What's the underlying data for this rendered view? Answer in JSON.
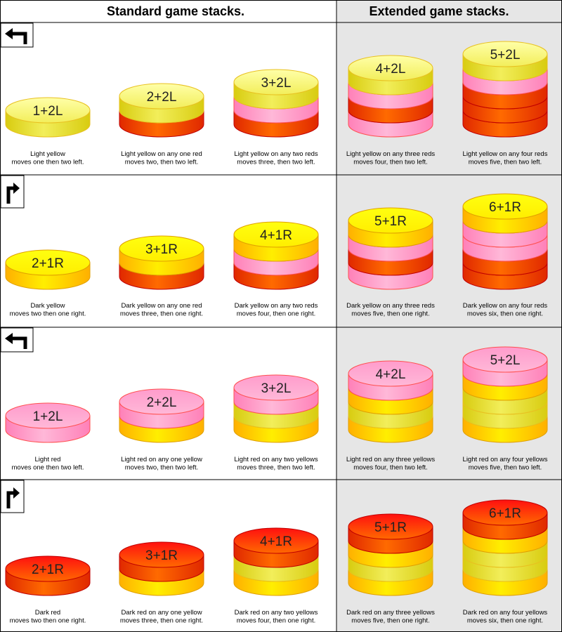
{
  "headers": {
    "standard": "Standard game stacks.",
    "extended": "Extended game stacks."
  },
  "colors": {
    "light_yellow": {
      "top": "#ffffa8",
      "side": "#f2ee5a",
      "side_dark": "#d8cc10",
      "rim": "#e8c020"
    },
    "dark_yellow": {
      "top": "#ffff10",
      "side": "#ffee00",
      "side_dark": "#ffb000",
      "rim": "#e0a000"
    },
    "light_red": {
      "top": "#ff9ccc",
      "side": "#ffb8d8",
      "side_dark": "#ff80b8",
      "rim": "#ff5050"
    },
    "dark_red": {
      "top": "#ff1010",
      "side": "#ff6a00",
      "side_dark": "#e02800",
      "rim": "#c00000"
    },
    "extended_bg": "#e6e6e6",
    "grid": "#000000"
  },
  "rows": [
    {
      "arrow": "turn-left-arrow-icon",
      "stacks": [
        {
          "label": "1+2L",
          "layers": [
            "light_yellow"
          ],
          "caption": [
            "Light yellow",
            "moves one then two left."
          ]
        },
        {
          "label": "2+2L",
          "layers": [
            "dark_red",
            "light_yellow"
          ],
          "caption": [
            "Light yellow on any one red",
            "moves two, then two left."
          ]
        },
        {
          "label": "3+2L",
          "layers": [
            "dark_red",
            "light_red",
            "light_yellow"
          ],
          "caption": [
            "Light yellow on any two reds",
            "moves three, then two left."
          ]
        },
        {
          "label": "4+2L",
          "layers": [
            "light_red",
            "dark_red",
            "light_red",
            "light_yellow"
          ],
          "caption": [
            "Light yellow on any three reds",
            "moves four, then two left."
          ]
        },
        {
          "label": "5+2L",
          "layers": [
            "dark_red",
            "dark_red",
            "dark_red",
            "light_red",
            "light_yellow"
          ],
          "caption": [
            "Light yellow on any four reds",
            "moves five, then two left."
          ]
        }
      ]
    },
    {
      "arrow": "turn-right-arrow-icon",
      "stacks": [
        {
          "label": "2+1R",
          "layers": [
            "dark_yellow"
          ],
          "caption": [
            "Dark yellow",
            "moves two then one right."
          ]
        },
        {
          "label": "3+1R",
          "layers": [
            "dark_red",
            "dark_yellow"
          ],
          "caption": [
            "Dark yellow on any one red",
            "moves three, then one right."
          ]
        },
        {
          "label": "4+1R",
          "layers": [
            "dark_red",
            "light_red",
            "dark_yellow"
          ],
          "caption": [
            "Dark yellow on any two reds",
            "moves four, then one right."
          ]
        },
        {
          "label": "5+1R",
          "layers": [
            "light_red",
            "dark_red",
            "light_red",
            "dark_yellow"
          ],
          "caption": [
            "Dark yellow on any three reds",
            "moves five, then one right."
          ]
        },
        {
          "label": "6+1R",
          "layers": [
            "dark_red",
            "dark_red",
            "light_red",
            "light_red",
            "dark_yellow"
          ],
          "caption": [
            "Dark yellow on any four reds",
            "moves six, then one right."
          ]
        }
      ]
    },
    {
      "arrow": "turn-left-arrow-icon",
      "stacks": [
        {
          "label": "1+2L",
          "layers": [
            "light_red"
          ],
          "caption": [
            "Light red",
            "moves one then two left."
          ]
        },
        {
          "label": "2+2L",
          "layers": [
            "dark_yellow",
            "light_red"
          ],
          "caption": [
            "Light red on any one yellow",
            "moves two, then two left."
          ]
        },
        {
          "label": "3+2L",
          "layers": [
            "dark_yellow",
            "light_yellow",
            "light_red"
          ],
          "caption": [
            "Light red on any two yellows",
            "moves three, then two left."
          ]
        },
        {
          "label": "4+2L",
          "layers": [
            "dark_yellow",
            "light_yellow",
            "dark_yellow",
            "light_red"
          ],
          "caption": [
            "Light red on any three yellows",
            "moves four, then two left."
          ]
        },
        {
          "label": "5+2L",
          "layers": [
            "dark_yellow",
            "light_yellow",
            "light_yellow",
            "dark_yellow",
            "light_red"
          ],
          "caption": [
            "Light red on any four yellows",
            "moves five, then two left."
          ]
        }
      ]
    },
    {
      "arrow": "turn-right-arrow-icon",
      "stacks": [
        {
          "label": "2+1R",
          "layers": [
            "dark_red"
          ],
          "caption": [
            "Dark red",
            "moves two then one right."
          ]
        },
        {
          "label": "3+1R",
          "layers": [
            "dark_yellow",
            "dark_red"
          ],
          "caption": [
            "Dark red on any one yellow",
            "moves three, then one right."
          ]
        },
        {
          "label": "4+1R",
          "layers": [
            "dark_yellow",
            "light_yellow",
            "dark_red"
          ],
          "caption": [
            "Dark red on any two yellows",
            "moves four, then one right."
          ]
        },
        {
          "label": "5+1R",
          "layers": [
            "dark_yellow",
            "light_yellow",
            "dark_yellow",
            "dark_red"
          ],
          "caption": [
            "Dark red on any three yellows",
            "moves five, then one right."
          ]
        },
        {
          "label": "6+1R",
          "layers": [
            "dark_yellow",
            "light_yellow",
            "light_yellow",
            "dark_yellow",
            "dark_red"
          ],
          "caption": [
            "Dark red on any four yellows",
            "moves six, then one right."
          ]
        }
      ]
    }
  ]
}
